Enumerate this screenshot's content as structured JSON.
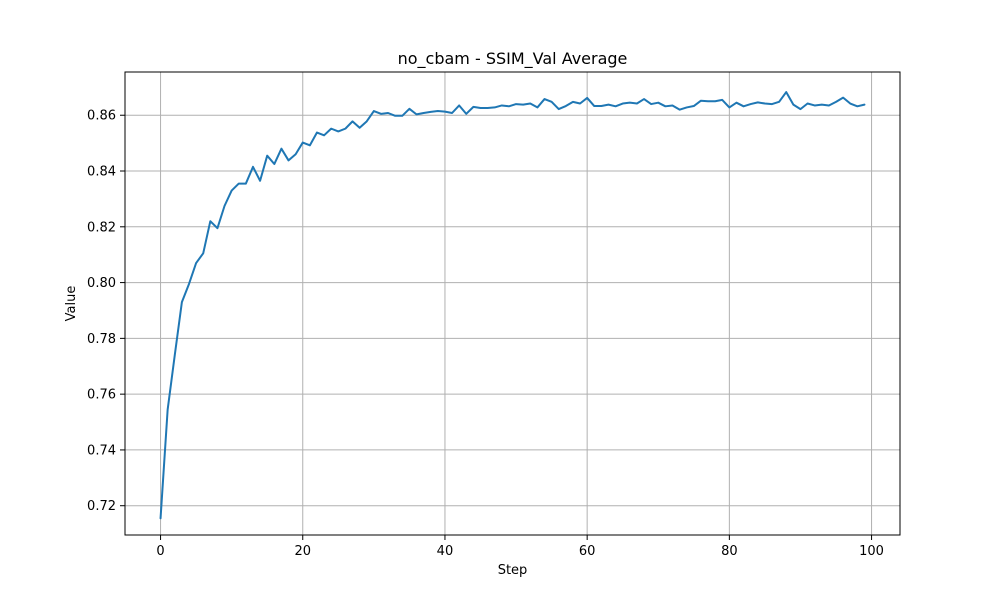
{
  "chart_data": {
    "type": "line",
    "title": "no_cbam - SSIM_Val Average",
    "xlabel": "Step",
    "ylabel": "Value",
    "xlim": [
      -5,
      104
    ],
    "ylim": [
      0.7095,
      0.8755
    ],
    "xticks": [
      0,
      20,
      40,
      60,
      80,
      100
    ],
    "xtick_labels": [
      "0",
      "20",
      "40",
      "60",
      "80",
      "100"
    ],
    "yticks": [
      0.72,
      0.74,
      0.76,
      0.78,
      0.8,
      0.82,
      0.84,
      0.86
    ],
    "ytick_labels": [
      "0.72",
      "0.74",
      "0.76",
      "0.78",
      "0.80",
      "0.82",
      "0.84",
      "0.86"
    ],
    "grid": true,
    "series": [
      {
        "color": "#1f77b4",
        "x": [
          0,
          1,
          2,
          3,
          4,
          5,
          6,
          7,
          8,
          9,
          10,
          11,
          12,
          13,
          14,
          15,
          16,
          17,
          18,
          19,
          20,
          21,
          22,
          23,
          24,
          25,
          26,
          27,
          28,
          29,
          30,
          31,
          32,
          33,
          34,
          35,
          36,
          37,
          38,
          39,
          40,
          41,
          42,
          43,
          44,
          45,
          46,
          47,
          48,
          49,
          50,
          51,
          52,
          53,
          54,
          55,
          56,
          57,
          58,
          59,
          60,
          61,
          62,
          63,
          64,
          65,
          66,
          67,
          68,
          69,
          70,
          71,
          72,
          73,
          74,
          75,
          76,
          77,
          78,
          79,
          80,
          81,
          82,
          83,
          84,
          85,
          86,
          87,
          88,
          89,
          90,
          91,
          92,
          93,
          94,
          95,
          96,
          97,
          98,
          99
        ],
        "y": [
          0.7155,
          0.7545,
          0.774,
          0.793,
          0.7995,
          0.807,
          0.8105,
          0.822,
          0.8195,
          0.8275,
          0.833,
          0.8355,
          0.8355,
          0.8415,
          0.8365,
          0.8455,
          0.8425,
          0.848,
          0.8438,
          0.846,
          0.8502,
          0.8492,
          0.8538,
          0.8528,
          0.8552,
          0.8542,
          0.8552,
          0.8578,
          0.8555,
          0.8578,
          0.8615,
          0.8605,
          0.8608,
          0.8598,
          0.8598,
          0.8623,
          0.8603,
          0.8608,
          0.8612,
          0.8615,
          0.8613,
          0.8608,
          0.8635,
          0.8605,
          0.863,
          0.8626,
          0.8626,
          0.8628,
          0.8635,
          0.8632,
          0.864,
          0.8638,
          0.8642,
          0.8628,
          0.8658,
          0.8648,
          0.8622,
          0.8633,
          0.8648,
          0.8642,
          0.8662,
          0.8633,
          0.8633,
          0.8638,
          0.8632,
          0.8642,
          0.8645,
          0.8642,
          0.8658,
          0.864,
          0.8645,
          0.8632,
          0.8635,
          0.862,
          0.8628,
          0.8633,
          0.8652,
          0.865,
          0.865,
          0.8655,
          0.8628,
          0.8645,
          0.8632,
          0.864,
          0.8646,
          0.8642,
          0.864,
          0.8648,
          0.8683,
          0.8638,
          0.8622,
          0.8642,
          0.8635,
          0.8638,
          0.8635,
          0.8648,
          0.8663,
          0.8642,
          0.8632,
          0.8638
        ]
      }
    ]
  }
}
